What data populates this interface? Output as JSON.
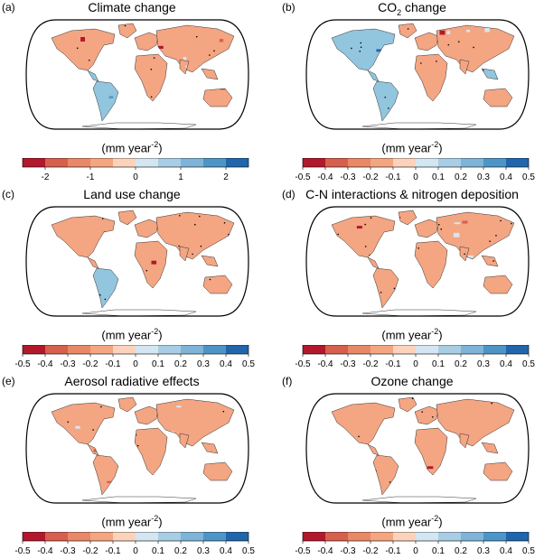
{
  "panels": [
    {
      "id": "a",
      "letter": "(a)",
      "title": "Climate change",
      "subscript": "",
      "title_suffix": "",
      "unit": "(mm year",
      "unit_exp": "-2",
      "unit_close": ")",
      "ticks": [
        "-2",
        "-1",
        "0",
        "1",
        "2"
      ],
      "tick_values": [
        -2,
        -1,
        0,
        1,
        2
      ],
      "range": [
        -2.5,
        2.5
      ],
      "pattern": "climate"
    },
    {
      "id": "b",
      "letter": "(b)",
      "title": "CO",
      "subscript": "2",
      "title_suffix": " change",
      "unit": "(mm year",
      "unit_exp": "-2",
      "unit_close": ")",
      "ticks": [
        "-0.5",
        "-0.4",
        "-0.3",
        "-0.2",
        "-0.1",
        "0",
        "0.1",
        "0.2",
        "0.3",
        "0.4",
        "0.5"
      ],
      "tick_values": [
        -0.5,
        -0.4,
        -0.3,
        -0.2,
        -0.1,
        0,
        0.1,
        0.2,
        0.3,
        0.4,
        0.5
      ],
      "range": [
        -0.5,
        0.5
      ],
      "pattern": "co2"
    },
    {
      "id": "c",
      "letter": "(c)",
      "title": "Land use change",
      "subscript": "",
      "title_suffix": "",
      "unit": "(mm year",
      "unit_exp": "-2",
      "unit_close": ")",
      "ticks": [
        "-0.5",
        "-0.4",
        "-0.3",
        "-0.2",
        "-0.1",
        "0",
        "0.1",
        "0.2",
        "0.3",
        "0.4",
        "0.5"
      ],
      "tick_values": [
        -0.5,
        -0.4,
        -0.3,
        -0.2,
        -0.1,
        0,
        0.1,
        0.2,
        0.3,
        0.4,
        0.5
      ],
      "range": [
        -0.5,
        0.5
      ],
      "pattern": "landuse"
    },
    {
      "id": "d",
      "letter": "(d)",
      "title": "C-N interactions & nitrogen deposition",
      "subscript": "",
      "title_suffix": "",
      "unit": "(mm year",
      "unit_exp": "-2",
      "unit_close": ")",
      "ticks": [
        "-0.5",
        "-0.4",
        "-0.3",
        "-0.2",
        "-0.1",
        "0",
        "0.1",
        "0.2",
        "0.3",
        "0.4",
        "0.5"
      ],
      "tick_values": [
        -0.5,
        -0.4,
        -0.3,
        -0.2,
        -0.1,
        0,
        0.1,
        0.2,
        0.3,
        0.4,
        0.5
      ],
      "range": [
        -0.5,
        0.5
      ],
      "pattern": "cn"
    },
    {
      "id": "e",
      "letter": "(e)",
      "title": "Aerosol radiative effects",
      "subscript": "",
      "title_suffix": "",
      "unit": "(mm year",
      "unit_exp": "-2",
      "unit_close": ")",
      "ticks": [
        "-0.5",
        "-0.4",
        "-0.3",
        "-0.2",
        "-0.1",
        "0",
        "0.1",
        "0.2",
        "0.3",
        "0.4",
        "0.5"
      ],
      "tick_values": [
        -0.5,
        -0.4,
        -0.3,
        -0.2,
        -0.1,
        0,
        0.1,
        0.2,
        0.3,
        0.4,
        0.5
      ],
      "range": [
        -0.5,
        0.5
      ],
      "pattern": "aerosol"
    },
    {
      "id": "f",
      "letter": "(f)",
      "title": "Ozone change",
      "subscript": "",
      "title_suffix": "",
      "unit": "(mm year",
      "unit_exp": "-2",
      "unit_close": ")",
      "ticks": [
        "-0.5",
        "-0.4",
        "-0.3",
        "-0.2",
        "-0.1",
        "0",
        "0.1",
        "0.2",
        "0.3",
        "0.4",
        "0.5"
      ],
      "tick_values": [
        -0.5,
        -0.4,
        -0.3,
        -0.2,
        -0.1,
        0,
        0.1,
        0.2,
        0.3,
        0.4,
        0.5
      ],
      "range": [
        -0.5,
        0.5
      ],
      "pattern": "ozone"
    }
  ],
  "colorbar_colors": [
    "#b2182b",
    "#d6604d",
    "#e98866",
    "#f4a582",
    "#fbd3bd",
    "#d4e6f1",
    "#a8cde4",
    "#7fb3d7",
    "#4d95c6",
    "#2166ac"
  ],
  "map_style": {
    "ocean": "#ffffff",
    "outline": "#000000",
    "negative_base": "#f4a582",
    "positive_base": "#92c5de",
    "stipple": "#000000"
  },
  "chart_data": [
    {
      "type": "heatmap",
      "panel": "a",
      "title": "Climate change",
      "colorbar_ticks": [
        -2,
        -1,
        0,
        1,
        2
      ],
      "colorbar_label": "(mm year-2)",
      "projection": "Robinson"
    },
    {
      "type": "heatmap",
      "panel": "b",
      "title": "CO2 change",
      "colorbar_ticks": [
        -0.5,
        -0.4,
        -0.3,
        -0.2,
        -0.1,
        0,
        0.1,
        0.2,
        0.3,
        0.4,
        0.5
      ],
      "colorbar_label": "(mm year-2)",
      "projection": "Robinson"
    },
    {
      "type": "heatmap",
      "panel": "c",
      "title": "Land use change",
      "colorbar_ticks": [
        -0.5,
        -0.4,
        -0.3,
        -0.2,
        -0.1,
        0,
        0.1,
        0.2,
        0.3,
        0.4,
        0.5
      ],
      "colorbar_label": "(mm year-2)",
      "projection": "Robinson"
    },
    {
      "type": "heatmap",
      "panel": "d",
      "title": "C-N interactions & nitrogen deposition",
      "colorbar_ticks": [
        -0.5,
        -0.4,
        -0.3,
        -0.2,
        -0.1,
        0,
        0.1,
        0.2,
        0.3,
        0.4,
        0.5
      ],
      "colorbar_label": "(mm year-2)",
      "projection": "Robinson"
    },
    {
      "type": "heatmap",
      "panel": "e",
      "title": "Aerosol radiative effects",
      "colorbar_ticks": [
        -0.5,
        -0.4,
        -0.3,
        -0.2,
        -0.1,
        0,
        0.1,
        0.2,
        0.3,
        0.4,
        0.5
      ],
      "colorbar_label": "(mm year-2)",
      "projection": "Robinson"
    },
    {
      "type": "heatmap",
      "panel": "f",
      "title": "Ozone change",
      "colorbar_ticks": [
        -0.5,
        -0.4,
        -0.3,
        -0.2,
        -0.1,
        0,
        0.1,
        0.2,
        0.3,
        0.4,
        0.5
      ],
      "colorbar_label": "(mm year-2)",
      "projection": "Robinson"
    }
  ]
}
